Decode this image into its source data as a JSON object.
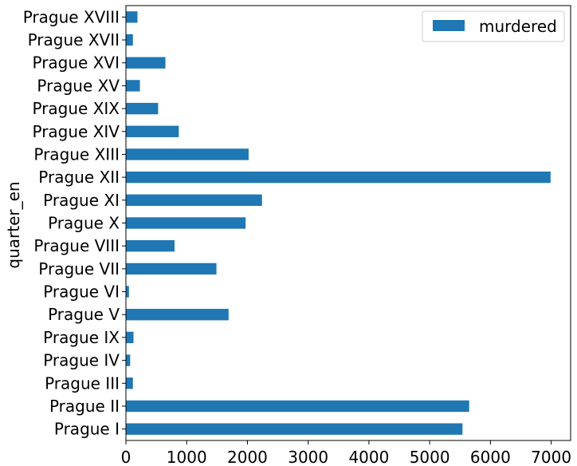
{
  "chart_data": {
    "type": "bar",
    "orientation": "horizontal",
    "categories": [
      "Prague I",
      "Prague II",
      "Prague III",
      "Prague IV",
      "Prague IX",
      "Prague V",
      "Prague VI",
      "Prague VII",
      "Prague VIII",
      "Prague X",
      "Prague XI",
      "Prague XII",
      "Prague XIII",
      "Prague XIV",
      "Prague XIX",
      "Prague XV",
      "Prague XVI",
      "Prague XVII",
      "Prague XVIII"
    ],
    "series": [
      {
        "name": "murdered",
        "color": "#1f77b4",
        "values": [
          5540,
          5650,
          115,
          70,
          125,
          1690,
          50,
          1490,
          800,
          1970,
          2240,
          6990,
          2020,
          870,
          530,
          230,
          650,
          115,
          190
        ]
      }
    ],
    "title": "",
    "xlabel": "",
    "ylabel": "quarter_en",
    "xlim": [
      0,
      7320
    ],
    "xticks": [
      0,
      1000,
      2000,
      3000,
      4000,
      5000,
      6000,
      7000
    ],
    "xtick_labels": [
      "0",
      "1000",
      "2000",
      "3000",
      "4000",
      "5000",
      "6000",
      "7000"
    ],
    "grid": false,
    "legend": "top-right"
  }
}
